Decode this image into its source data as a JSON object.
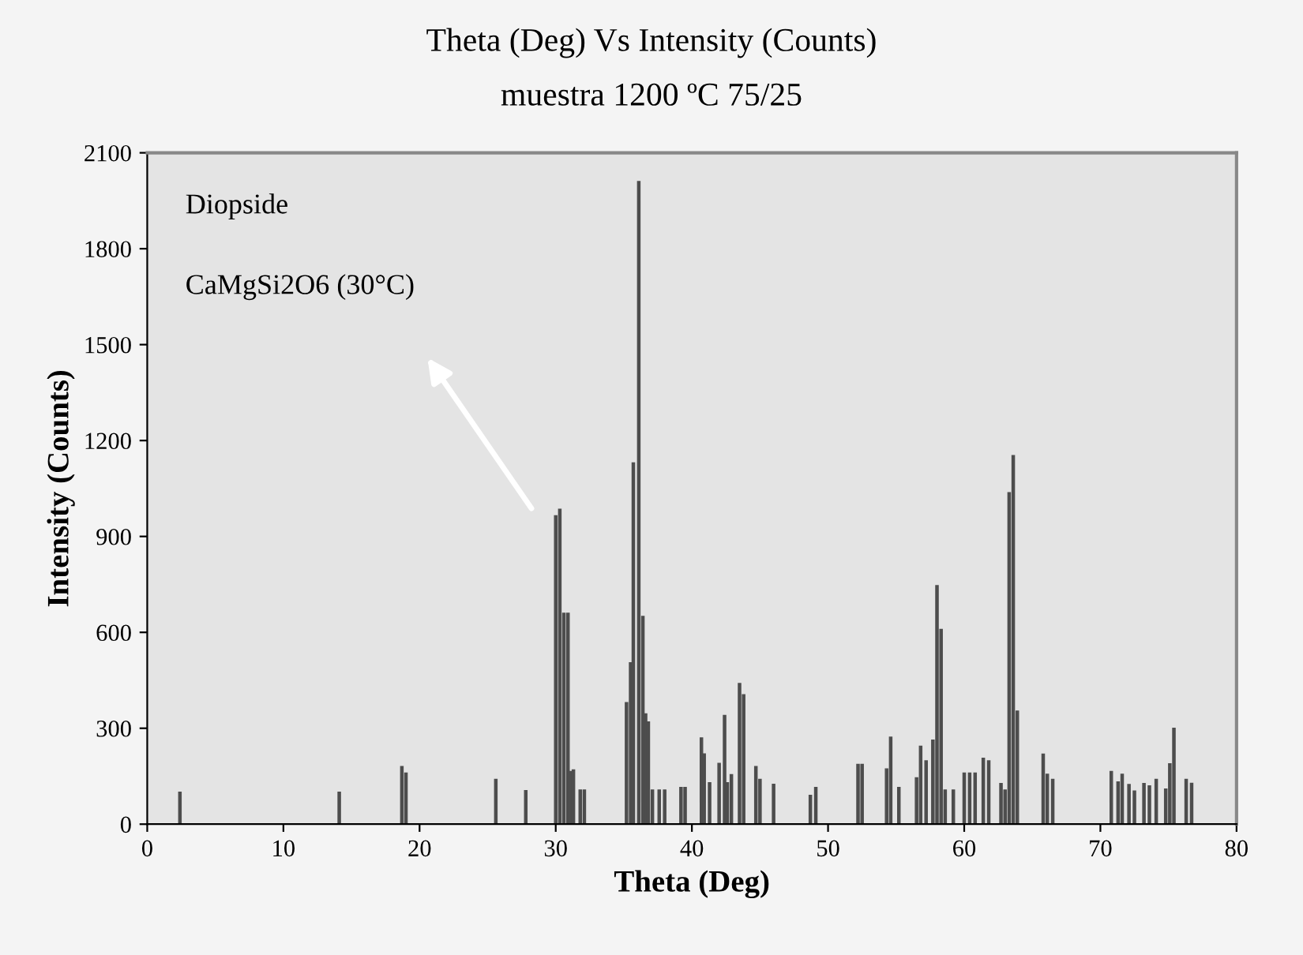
{
  "chart_data": {
    "type": "bar",
    "title": "Theta (Deg) Vs Intensity (Counts)",
    "subtitle": "muestra 1200 ºC 75/25",
    "xlabel": "Theta (Deg)",
    "ylabel": "Intensity (Counts)",
    "x": [
      2.4,
      14.1,
      18.7,
      19.0,
      25.6,
      27.8,
      30.0,
      30.3,
      30.6,
      30.9,
      31.1,
      31.3,
      31.8,
      32.1,
      35.2,
      35.5,
      35.7,
      36.1,
      36.4,
      36.6,
      36.8,
      37.1,
      37.6,
      38.0,
      39.2,
      39.5,
      40.7,
      40.9,
      41.3,
      42.0,
      42.4,
      42.6,
      42.9,
      43.5,
      43.8,
      44.7,
      45.0,
      46.0,
      48.7,
      49.1,
      52.2,
      52.5,
      54.3,
      54.6,
      55.2,
      56.5,
      56.8,
      57.2,
      57.7,
      58.0,
      58.3,
      58.6,
      59.2,
      60.0,
      60.4,
      60.8,
      61.4,
      61.8,
      62.7,
      63.0,
      63.3,
      63.6,
      63.9,
      65.8,
      66.1,
      66.5,
      70.8,
      71.3,
      71.6,
      72.1,
      72.5,
      73.2,
      73.6,
      74.1,
      74.8,
      75.1,
      75.4,
      76.3,
      76.7
    ],
    "values": [
      100,
      100,
      180,
      160,
      140,
      105,
      965,
      985,
      660,
      660,
      165,
      170,
      107,
      107,
      380,
      505,
      1130,
      2010,
      650,
      345,
      320,
      107,
      107,
      107,
      115,
      115,
      270,
      220,
      130,
      190,
      340,
      130,
      155,
      440,
      405,
      180,
      140,
      125,
      90,
      115,
      187,
      187,
      173,
      272,
      115,
      145,
      244,
      198,
      263,
      746,
      609,
      107,
      107,
      160,
      160,
      160,
      206,
      198,
      127,
      107,
      1037,
      1153,
      354,
      219,
      156,
      140,
      165,
      132,
      156,
      124,
      104,
      127,
      120,
      140,
      110,
      189,
      300,
      140,
      128
    ],
    "color": "#4d4d4d",
    "xlim": [
      0,
      80
    ],
    "ylim": [
      0,
      2100
    ],
    "xticks": [
      0,
      10,
      20,
      30,
      40,
      50,
      60,
      70,
      80
    ],
    "yticks": [
      0,
      300,
      600,
      900,
      1200,
      1500,
      1800,
      2100
    ],
    "grid": false,
    "annotations": [
      "Diopside",
      "CaMgSi2O6 (30°C)"
    ]
  }
}
